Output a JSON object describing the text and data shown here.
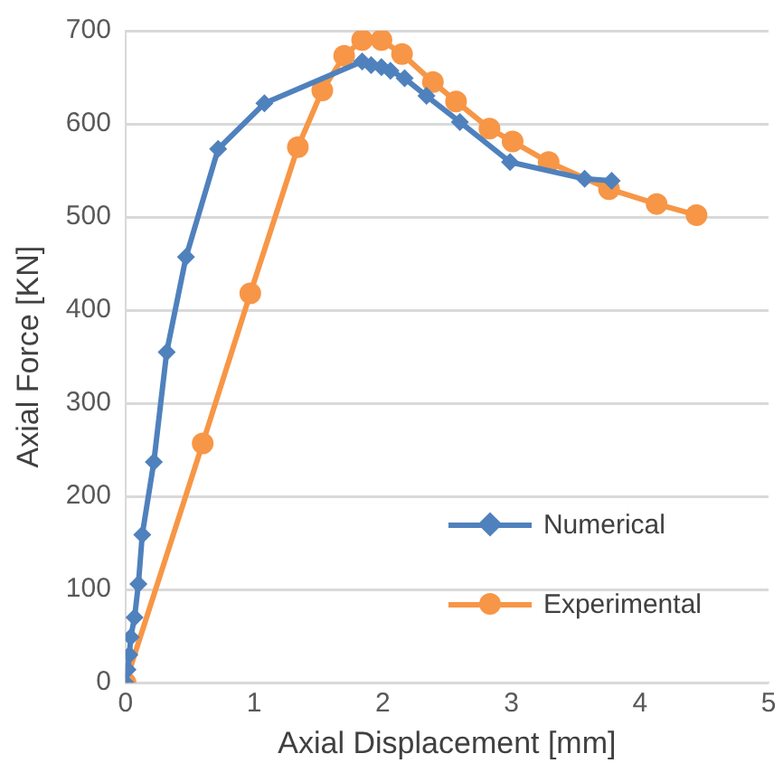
{
  "chart_data": {
    "type": "line",
    "xlabel": "Axial Displacement [mm]",
    "ylabel": "Axial Force [KN]",
    "xlim": [
      0,
      5
    ],
    "xticks": [
      0,
      1,
      2,
      3,
      4,
      5
    ],
    "ylim": [
      0,
      700
    ],
    "yticks": [
      0,
      100,
      200,
      300,
      400,
      500,
      600,
      700
    ],
    "grid": "y",
    "legend": "bottom right",
    "line_style": "solid",
    "series": [
      {
        "name": "Numerical",
        "color": "#4f81bd",
        "marker": "diamond",
        "x": [
          0,
          0.015,
          0.03,
          0.04,
          0.07,
          0.1,
          0.13,
          0.22,
          0.32,
          0.47,
          0.72,
          1.08,
          1.84,
          1.91,
          1.99,
          2.06,
          2.17,
          2.34,
          2.6,
          2.99,
          3.57,
          3.78
        ],
        "values": [
          0,
          14,
          30,
          49,
          70,
          106,
          159,
          237,
          355,
          457,
          573,
          622,
          667,
          663,
          661,
          657,
          649,
          630,
          602,
          559,
          541,
          539
        ]
      },
      {
        "name": "Experimental",
        "color": "#f79646",
        "marker": "circle",
        "x": [
          0,
          0.6,
          0.97,
          1.34,
          1.53,
          1.7,
          1.84,
          1.99,
          2.15,
          2.39,
          2.57,
          2.83,
          3.01,
          3.29,
          3.76,
          4.13,
          4.44
        ],
        "values": [
          0,
          257,
          418,
          575,
          636,
          673,
          690,
          690,
          675,
          645,
          624,
          595,
          581,
          559,
          530,
          514,
          502
        ]
      }
    ]
  }
}
